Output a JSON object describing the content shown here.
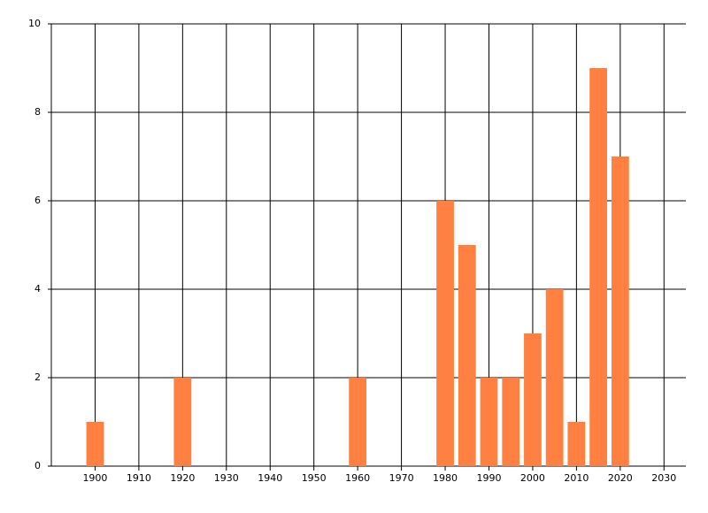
{
  "chart_data": {
    "type": "bar",
    "x": [
      1900,
      1920,
      1960,
      1980,
      1985,
      1990,
      1995,
      2000,
      2005,
      2010,
      2015,
      2020
    ],
    "values": [
      1,
      2,
      2,
      6,
      5,
      2,
      2,
      3,
      4,
      1,
      9,
      7
    ],
    "color": "#ff8040",
    "xlim": [
      1890,
      2035
    ],
    "xticks": [
      1900,
      1910,
      1920,
      1930,
      1940,
      1950,
      1960,
      1970,
      1980,
      1990,
      2000,
      2010,
      2020,
      2030
    ],
    "ylim": [
      0,
      10
    ],
    "yticks": [
      0,
      2,
      4,
      6,
      8,
      10
    ],
    "grid": true
  }
}
